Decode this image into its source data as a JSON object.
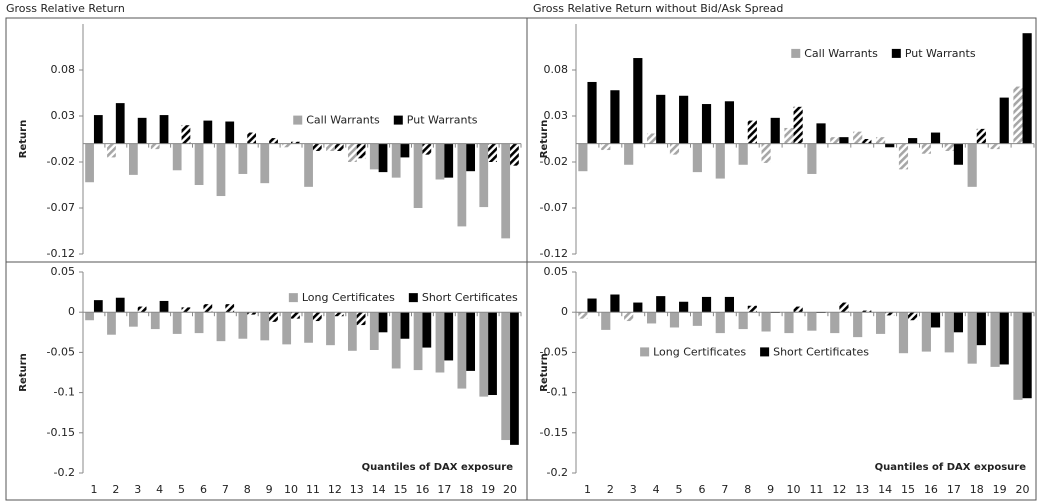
{
  "chart_data": [
    {
      "type": "bar",
      "title": "Gross Relative Return",
      "y_label": "Return",
      "ylim": [
        -0.12,
        0.13
      ],
      "yticks": [
        -0.12,
        -0.07,
        -0.02,
        0.03,
        0.08
      ],
      "legend": "center-right",
      "series": [
        {
          "name": "Call Warrants",
          "color": "#a6a6a6",
          "values": [
            -0.042,
            -0.015,
            -0.034,
            -0.006,
            -0.029,
            -0.045,
            -0.057,
            -0.033,
            -0.043,
            -0.004,
            -0.047,
            -0.008,
            -0.02,
            -0.028,
            -0.037,
            -0.07,
            -0.039,
            -0.09,
            -0.069,
            -0.103
          ],
          "hatched": [
            false,
            true,
            false,
            true,
            false,
            false,
            false,
            false,
            false,
            true,
            false,
            true,
            true,
            false,
            false,
            false,
            false,
            false,
            false,
            false
          ]
        },
        {
          "name": "Put Warrants",
          "color": "#000000",
          "values": [
            0.031,
            0.044,
            0.028,
            0.031,
            0.02,
            0.025,
            0.024,
            0.012,
            0.006,
            0.002,
            -0.008,
            -0.008,
            -0.016,
            -0.031,
            -0.015,
            -0.012,
            -0.037,
            -0.03,
            -0.02,
            -0.024
          ],
          "hatched": [
            false,
            false,
            false,
            false,
            true,
            false,
            false,
            true,
            true,
            true,
            true,
            true,
            true,
            false,
            false,
            true,
            false,
            false,
            true,
            true
          ]
        }
      ]
    },
    {
      "type": "bar",
      "title": "Gross Relative Return without Bid/Ask Spread",
      "y_label": "Return",
      "ylim": [
        -0.12,
        0.13
      ],
      "yticks": [
        -0.12,
        -0.07,
        -0.02,
        0.03,
        0.08
      ],
      "legend": "upper-right",
      "series": [
        {
          "name": "Call Warrants",
          "color": "#a6a6a6",
          "values": [
            -0.03,
            -0.007,
            -0.023,
            0.011,
            -0.012,
            -0.031,
            -0.038,
            -0.023,
            -0.021,
            0.017,
            -0.033,
            0.007,
            0.013,
            0.007,
            -0.028,
            -0.011,
            -0.008,
            -0.047,
            -0.006,
            0.062
          ],
          "hatched": [
            false,
            true,
            false,
            true,
            true,
            false,
            false,
            false,
            true,
            true,
            false,
            true,
            true,
            true,
            true,
            true,
            true,
            false,
            true,
            true
          ]
        },
        {
          "name": "Put Warrants",
          "color": "#000000",
          "values": [
            0.067,
            0.058,
            0.093,
            0.053,
            0.052,
            0.043,
            0.046,
            0.025,
            0.028,
            0.04,
            0.022,
            0.007,
            0.005,
            -0.004,
            0.006,
            0.012,
            -0.023,
            0.016,
            0.05,
            0.12
          ],
          "hatched": [
            false,
            false,
            false,
            false,
            false,
            false,
            false,
            true,
            false,
            true,
            false,
            false,
            true,
            false,
            false,
            false,
            false,
            true,
            false,
            false
          ]
        }
      ]
    },
    {
      "type": "bar",
      "y_label": "Return",
      "x_label": "Quantiles of DAX exposure",
      "categories": [
        "1",
        "2",
        "3",
        "4",
        "5",
        "6",
        "7",
        "8",
        "9",
        "10",
        "11",
        "12",
        "13",
        "14",
        "15",
        "16",
        "17",
        "18",
        "19",
        "20"
      ],
      "ylim": [
        -0.2,
        0.05
      ],
      "yticks": [
        -0.2,
        -0.15,
        -0.1,
        -0.05,
        0,
        0.05
      ],
      "legend": "upper-right",
      "series": [
        {
          "name": "Long Certificates",
          "color": "#a6a6a6",
          "values": [
            -0.01,
            -0.028,
            -0.018,
            -0.021,
            -0.027,
            -0.026,
            -0.036,
            -0.033,
            -0.035,
            -0.04,
            -0.038,
            -0.041,
            -0.048,
            -0.047,
            -0.07,
            -0.072,
            -0.075,
            -0.095,
            -0.105,
            -0.159
          ],
          "hatched": [
            false,
            false,
            false,
            false,
            false,
            false,
            false,
            false,
            false,
            false,
            false,
            false,
            false,
            false,
            false,
            false,
            false,
            false,
            false,
            false
          ]
        },
        {
          "name": "Short Certificates",
          "color": "#000000",
          "values": [
            0.015,
            0.018,
            0.007,
            0.014,
            0.006,
            0.01,
            0.01,
            -0.003,
            -0.012,
            -0.008,
            -0.011,
            -0.005,
            -0.016,
            -0.025,
            -0.033,
            -0.044,
            -0.06,
            -0.073,
            -0.103,
            -0.165
          ],
          "hatched": [
            false,
            false,
            true,
            false,
            true,
            true,
            true,
            true,
            true,
            true,
            true,
            true,
            true,
            false,
            false,
            false,
            false,
            false,
            false,
            false
          ]
        }
      ]
    },
    {
      "type": "bar",
      "y_label": "Return",
      "x_label": "Quantiles of DAX exposure",
      "categories": [
        "1",
        "2",
        "3",
        "4",
        "5",
        "6",
        "7",
        "8",
        "9",
        "10",
        "11",
        "12",
        "13",
        "14",
        "15",
        "16",
        "17",
        "18",
        "19",
        "20"
      ],
      "ylim": [
        -0.2,
        0.05
      ],
      "yticks": [
        -0.2,
        -0.15,
        -0.1,
        -0.05,
        0,
        0.05
      ],
      "legend": "center-left",
      "series": [
        {
          "name": "Long Certificates",
          "color": "#a6a6a6",
          "values": [
            -0.008,
            -0.022,
            -0.011,
            -0.014,
            -0.019,
            -0.017,
            -0.026,
            -0.021,
            -0.024,
            -0.026,
            -0.023,
            -0.026,
            -0.031,
            -0.027,
            -0.051,
            -0.049,
            -0.05,
            -0.064,
            -0.068,
            -0.109
          ],
          "hatched": [
            true,
            false,
            true,
            false,
            false,
            false,
            false,
            false,
            false,
            false,
            false,
            false,
            false,
            false,
            false,
            false,
            false,
            false,
            false,
            false
          ]
        },
        {
          "name": "Short Certificates",
          "color": "#000000",
          "values": [
            0.017,
            0.022,
            0.012,
            0.02,
            0.013,
            0.019,
            0.019,
            0.008,
            -0.001,
            0.007,
            -0.001,
            0.012,
            0.002,
            -0.004,
            -0.01,
            -0.019,
            -0.025,
            -0.041,
            -0.065,
            -0.107
          ],
          "hatched": [
            false,
            false,
            false,
            false,
            false,
            false,
            false,
            true,
            false,
            true,
            false,
            true,
            true,
            true,
            true,
            false,
            false,
            false,
            false,
            false
          ]
        }
      ]
    }
  ]
}
